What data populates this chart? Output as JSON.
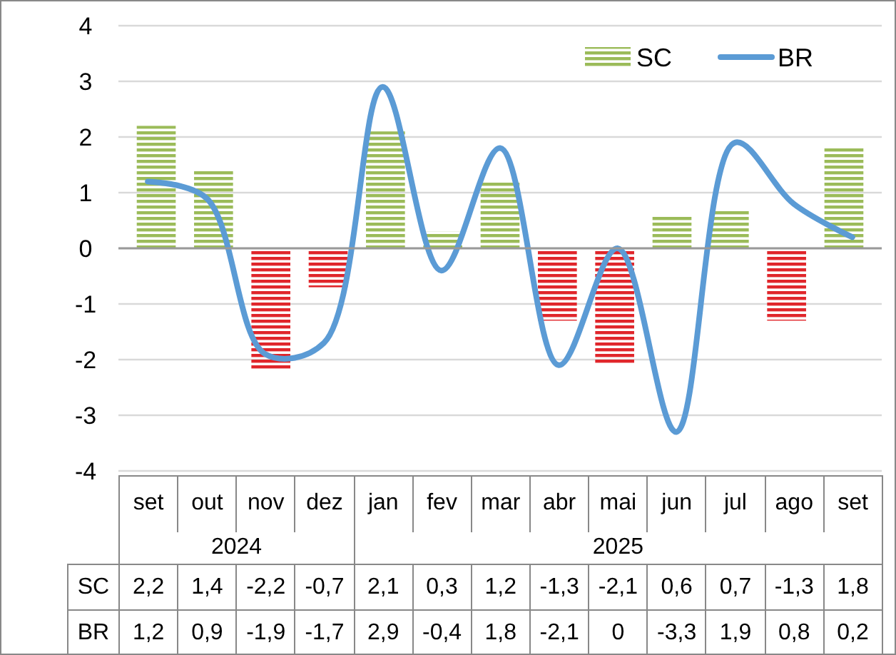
{
  "chart_data": {
    "type": "bar",
    "categories": [
      "set",
      "out",
      "nov",
      "dez",
      "jan",
      "fev",
      "mar",
      "abr",
      "mai",
      "jun",
      "jul",
      "ago",
      "set"
    ],
    "series": [
      {
        "name": "SC",
        "color": "#9bbb59",
        "colors": [
          "#9bbb59",
          "#9bbb59",
          "#e0262b",
          "#e0262b",
          "#9bbb59",
          "#9bbb59",
          "#9bbb59",
          "#e0262b",
          "#e0262b",
          "#9bbb59",
          "#9bbb59",
          "#e0262b",
          "#9bbb59"
        ],
        "values": [
          2.2,
          1.4,
          -2.2,
          -0.7,
          2.1,
          0.3,
          1.2,
          -1.3,
          -2.1,
          0.6,
          0.7,
          -1.3,
          1.8
        ],
        "value_labels": [
          "2,2",
          "1,4",
          "-2,2",
          "-0,7",
          "2,1",
          "0,3",
          "1,2",
          "-1,3",
          "-2,1",
          "0,6",
          "0,7",
          "-1,3",
          "1,8"
        ]
      },
      {
        "name": "BR",
        "type": "line",
        "color": "#5b9bd5",
        "values": [
          1.2,
          0.9,
          -1.9,
          -1.7,
          2.9,
          -0.4,
          1.8,
          -2.1,
          0,
          -3.3,
          1.9,
          0.8,
          0.2
        ],
        "value_labels": [
          "1,2",
          "0,9",
          "-1,9",
          "-1,7",
          "2,9",
          "-0,4",
          "1,8",
          "-2,1",
          "0",
          "-3,3",
          "1,9",
          "0,8",
          "0,2"
        ]
      }
    ],
    "ylim": [
      -4,
      4
    ],
    "yticks": [
      -4,
      -3,
      -2,
      -1,
      0,
      1,
      2,
      3,
      4
    ],
    "grid": true,
    "legend": "top right",
    "marker": "none",
    "line_style": "solid",
    "annotations": [
      "2024",
      "2025"
    ]
  }
}
